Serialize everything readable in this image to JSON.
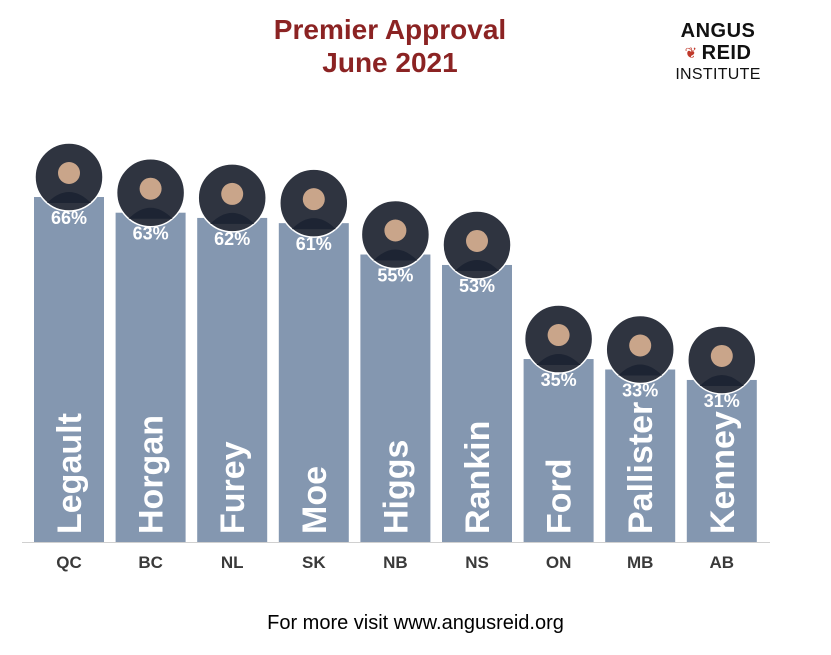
{
  "header": {
    "title_line1": "Premier Approval",
    "title_line2": "June 2021",
    "logo_line1": "ANGUS",
    "logo_line2": "REID",
    "logo_line3": "INSTITUTE"
  },
  "footer": {
    "text": "For more visit www.angusreid.org"
  },
  "colors": {
    "bar": "#8497b0",
    "title": "#8b2323",
    "axis": "#d0d0d0"
  },
  "chart_data": {
    "type": "bar",
    "title": "Premier Approval June 2021",
    "categories": [
      "QC",
      "BC",
      "NL",
      "SK",
      "NB",
      "NS",
      "ON",
      "MB",
      "AB"
    ],
    "names": [
      "Legault",
      "Horgan",
      "Furey",
      "Moe",
      "Higgs",
      "Rankin",
      "Ford",
      "Pallister",
      "Kenney"
    ],
    "values": [
      66,
      63,
      62,
      61,
      55,
      53,
      35,
      33,
      31
    ],
    "value_labels": [
      "66%",
      "63%",
      "62%",
      "61%",
      "55%",
      "53%",
      "35%",
      "33%",
      "31%"
    ],
    "unit": "%",
    "ylim": [
      0,
      100
    ],
    "grid": false,
    "legend": "none"
  }
}
